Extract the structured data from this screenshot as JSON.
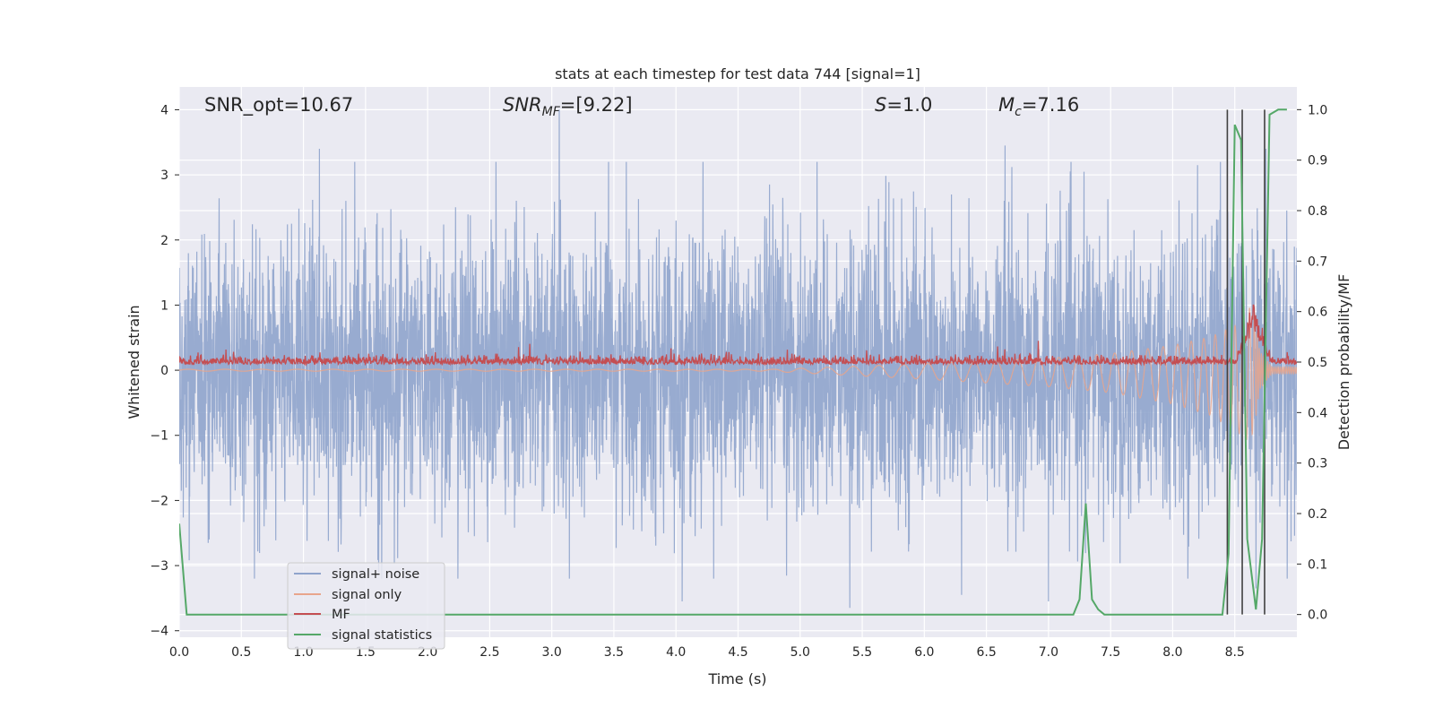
{
  "chart_data": {
    "type": "line",
    "title": "stats at each timestep for test data 744 [signal=1]",
    "xlabel": "Time (s)",
    "ylabel": "Whitened strain",
    "y2label": "Detection probability/MF",
    "xlim": [
      0,
      9.0
    ],
    "ylim": [
      -4.1,
      4.35
    ],
    "y2lim": [
      -0.045,
      1.045
    ],
    "xticks": [
      "0.0",
      "0.5",
      "1.0",
      "1.5",
      "2.0",
      "2.5",
      "3.0",
      "3.5",
      "4.0",
      "4.5",
      "5.0",
      "5.5",
      "6.0",
      "6.5",
      "7.0",
      "7.5",
      "8.0",
      "8.5"
    ],
    "xtick_values": [
      0.0,
      0.5,
      1.0,
      1.5,
      2.0,
      2.5,
      3.0,
      3.5,
      4.0,
      4.5,
      5.0,
      5.5,
      6.0,
      6.5,
      7.0,
      7.5,
      8.0,
      8.5
    ],
    "yticks": [
      "4",
      "3",
      "2",
      "1",
      "0",
      "−1",
      "−2",
      "−3",
      "−4"
    ],
    "ytick_values": [
      4,
      3,
      2,
      1,
      0,
      -1,
      -2,
      -3,
      -4
    ],
    "y2ticks": [
      "1.0",
      "0.9",
      "0.8",
      "0.7",
      "0.6",
      "0.5",
      "0.4",
      "0.3",
      "0.2",
      "0.1",
      "0.0"
    ],
    "y2tick_values": [
      1.0,
      0.9,
      0.8,
      0.7,
      0.6,
      0.5,
      0.4,
      0.3,
      0.2,
      0.1,
      0.0
    ],
    "grid": true,
    "legend_position": "lower-left",
    "annotations": {
      "snr_opt": "SNR_opt=10.67",
      "snr_mf_base": "SNR",
      "snr_mf_sub": "MF",
      "snr_mf_rest": "=[9.22]",
      "s_italic": "S",
      "s_rest": "=1.0",
      "mc_base": "M",
      "mc_sub": "c",
      "mc_rest": "=7.16"
    },
    "series": [
      {
        "name": "signal+ noise",
        "color": "#8fa4cc",
        "description_values": "whitened strain noise, amplitude roughly within ±3.7",
        "peaks": [
          [
            1.13,
            3.4
          ],
          [
            3.06,
            4.0
          ],
          [
            6.65,
            3.45
          ],
          [
            8.2,
            3.15
          ],
          [
            8.75,
            3.4
          ]
        ],
        "troughs": [
          [
            4.05,
            -3.55
          ],
          [
            5.4,
            -3.65
          ],
          [
            6.3,
            -3.45
          ],
          [
            7.0,
            -3.55
          ],
          [
            8.67,
            -3.35
          ]
        ]
      },
      {
        "name": "signal only",
        "color": "#e8a58c",
        "description_values": "chirp signal growing in amplitude toward merger near t=8.67 s",
        "envelope": [
          [
            4.8,
            0.02
          ],
          [
            6.0,
            0.12
          ],
          [
            7.0,
            0.22
          ],
          [
            7.5,
            0.3
          ],
          [
            8.0,
            0.45
          ],
          [
            8.3,
            0.6
          ],
          [
            8.5,
            0.8
          ],
          [
            8.65,
            1.0
          ],
          [
            8.7,
            0.3
          ],
          [
            8.8,
            0.05
          ]
        ]
      },
      {
        "name": "MF",
        "color": "#c44e52",
        "description_values": "matched filter output, baseline ~0.13 with small spikes, peak ~1.0 near t=8.65 s",
        "peak": [
          8.65,
          1.0
        ]
      },
      {
        "name": "signal statistics",
        "color": "#55a868",
        "axis": "right",
        "points": [
          [
            0.0,
            0.18
          ],
          [
            0.06,
            0.0
          ],
          [
            0.15,
            0.0
          ],
          [
            7.2,
            0.0
          ],
          [
            7.25,
            0.03
          ],
          [
            7.3,
            0.22
          ],
          [
            7.35,
            0.03
          ],
          [
            7.4,
            0.01
          ],
          [
            7.45,
            0.0
          ],
          [
            8.4,
            0.0
          ],
          [
            8.45,
            0.12
          ],
          [
            8.5,
            0.97
          ],
          [
            8.55,
            0.94
          ],
          [
            8.6,
            0.15
          ],
          [
            8.67,
            0.01
          ],
          [
            8.72,
            0.15
          ],
          [
            8.78,
            0.99
          ],
          [
            8.85,
            1.0
          ],
          [
            8.92,
            1.0
          ]
        ]
      }
    ],
    "vlines": [
      8.44,
      8.56,
      8.74
    ]
  },
  "colors": {
    "axes_bg": "#eaeaf2",
    "grid": "#ffffff",
    "vline": "#404040"
  }
}
